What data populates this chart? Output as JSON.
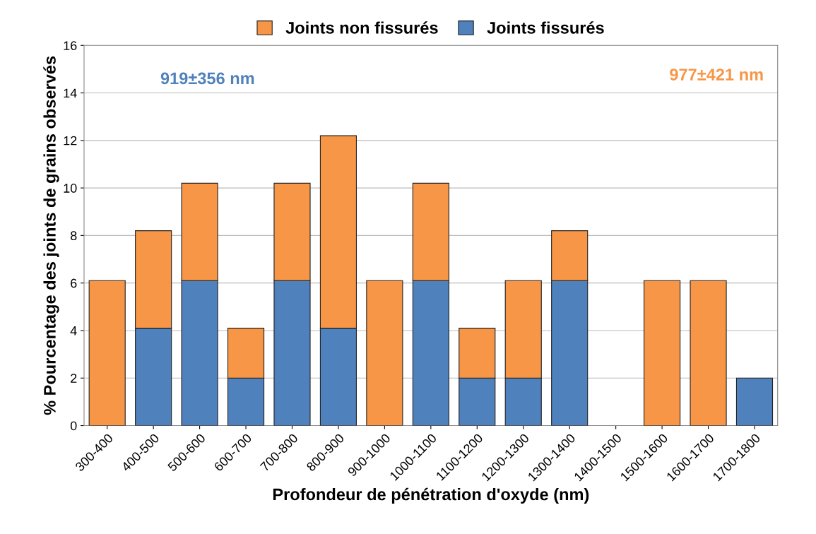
{
  "chart_data": {
    "type": "bar",
    "stacked": true,
    "xlabel": "Profondeur de pénétration d'oxyde (nm)",
    "ylabel": "% Pourcentage des joints de grains observés",
    "categories": [
      "300-400",
      "400-500",
      "500-600",
      "600-700",
      "700-800",
      "800-900",
      "900-1000",
      "1000-1100",
      "1100-1200",
      "1200-1300",
      "1300-1400",
      "1400-1500",
      "1500-1600",
      "1600-1700",
      "1700-1800"
    ],
    "series": [
      {
        "name": "Joints fissurés",
        "color": "#4f81bd",
        "values": [
          null,
          4.1,
          6.1,
          2.0,
          6.1,
          4.1,
          null,
          6.1,
          2.0,
          2.0,
          6.1,
          null,
          null,
          null,
          2.0
        ]
      },
      {
        "name": "Joints non fissurés",
        "color": "#f79646",
        "values": [
          6.1,
          4.1,
          4.1,
          2.1,
          4.1,
          8.1,
          6.1,
          4.1,
          2.1,
          4.1,
          2.1,
          null,
          6.1,
          6.1,
          null
        ]
      }
    ],
    "annotations": [
      "919±356 nm",
      "977±421 nm"
    ],
    "ylim": [
      0,
      16
    ],
    "yticks": [
      0,
      2,
      4,
      6,
      8,
      10,
      12,
      14,
      16
    ],
    "grid": "y",
    "legend": "top"
  }
}
